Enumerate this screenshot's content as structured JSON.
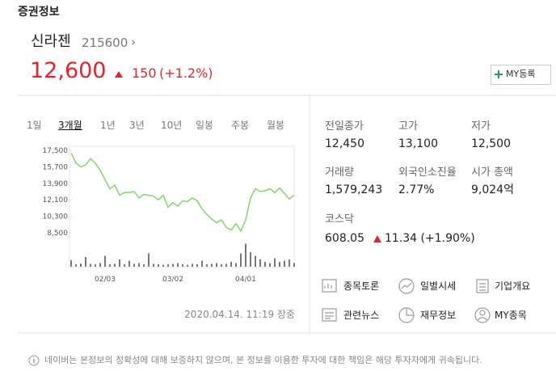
{
  "header": {
    "title": "증권정보"
  },
  "stock": {
    "name": "신라젠",
    "code": "215600",
    "price": "12,600",
    "change": "150",
    "change_pct": "(+1.2%)",
    "my_button": "MY등록"
  },
  "chart_tabs": {
    "items": [
      "1일",
      "3개월",
      "1년",
      "3년",
      "10년",
      "일봉",
      "주봉",
      "월봉"
    ],
    "selected": 1
  },
  "chart_data": {
    "type": "line",
    "color": "#83d46e",
    "volume_color": "#777777",
    "categories": [
      null,
      null,
      null,
      null,
      null,
      null,
      null,
      "02/03",
      null,
      null,
      null,
      null,
      null,
      null,
      null,
      null,
      null,
      null,
      null,
      null,
      null,
      "03/02",
      null,
      null,
      null,
      null,
      null,
      null,
      null,
      null,
      null,
      null,
      null,
      null,
      null,
      null,
      "04/01",
      null,
      null,
      null,
      null,
      null,
      null,
      null,
      null,
      null,
      null
    ],
    "values": [
      17200,
      16100,
      15700,
      15900,
      16600,
      16100,
      15300,
      14300,
      13300,
      13700,
      12600,
      12900,
      12900,
      13000,
      12300,
      12700,
      12600,
      12500,
      12100,
      12600,
      11300,
      11800,
      11400,
      12000,
      11900,
      12300,
      12000,
      11100,
      10500,
      10000,
      9600,
      9900,
      9100,
      8800,
      9500,
      8700,
      9900,
      12300,
      13300,
      13000,
      13100,
      13300,
      12900,
      13400,
      12800,
      12200,
      12600
    ],
    "volume_values": [
      27,
      10,
      13,
      40,
      12,
      10,
      15,
      45,
      10,
      12,
      30,
      10,
      25,
      12,
      15,
      10,
      55,
      12,
      10,
      8,
      10,
      12,
      15,
      10,
      8,
      12,
      10,
      25,
      10,
      12,
      15,
      10,
      12,
      20,
      15,
      55,
      95,
      60,
      45,
      30,
      20,
      15,
      35,
      20,
      25,
      30,
      15
    ],
    "volume_ylim": [
      0,
      100
    ],
    "ylim": [
      8000,
      17800
    ],
    "yticks": [
      {
        "value": 8500,
        "label": "8,500"
      },
      {
        "value": 10300,
        "label": "10,300"
      },
      {
        "value": 12100,
        "label": "12,100"
      },
      {
        "value": 13900,
        "label": "13,900"
      },
      {
        "value": 15700,
        "label": "15,700"
      },
      {
        "value": 17500,
        "label": "17,500"
      }
    ]
  },
  "timestamp": "2020.04.14. 11:19 장중",
  "quote": {
    "prev_close": {
      "label": "전일종가",
      "value": "12,450"
    },
    "high": {
      "label": "고가",
      "value": "13,100"
    },
    "low": {
      "label": "저가",
      "value": "12,500"
    },
    "volume": {
      "label": "거래량",
      "value": "1,579,243"
    },
    "foreign": {
      "label": "외국인소진율",
      "value": "2.77%"
    },
    "market_cap": {
      "label": "시가 총액",
      "value": "9,024억"
    },
    "index": {
      "label": "코스닥",
      "value": "608.05",
      "change": "11.34 (+1.90%)"
    }
  },
  "links": [
    "종목토론",
    "일별시세",
    "기업개요",
    "관련뉴스",
    "재무정보",
    "MY종목"
  ],
  "footer": "네이버는 본정보의 정확성에 대해 보증하지 않으며, 본 정보를 이용한 투자에 대한 책임은 해당 투자자에게 귀속됩니다."
}
